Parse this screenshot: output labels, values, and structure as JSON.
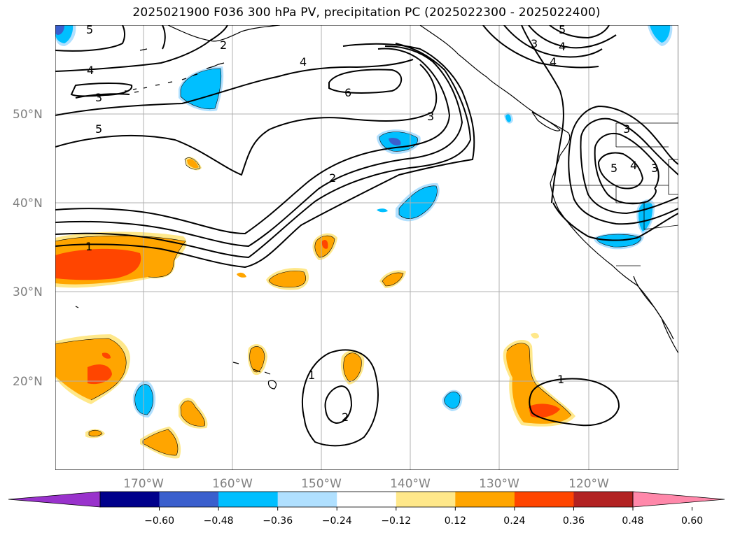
{
  "title": "2025021900 F036 300 hPa PV, precipitation PC (2025022300 - 2025022400)",
  "lat_labels": [
    "50°N",
    "40°N",
    "30°N",
    "20°N"
  ],
  "lon_labels": [
    "170°W",
    "160°W",
    "150°W",
    "140°W",
    "130°W",
    "120°W"
  ],
  "colorbar": {
    "ticks": [
      "−0.60",
      "−0.48",
      "−0.36",
      "−0.24",
      "−0.12",
      "0.12",
      "0.24",
      "0.36",
      "0.48",
      "0.60"
    ],
    "colors": [
      "#9932cc",
      "#00008b",
      "#3a5fcd",
      "#00bfff",
      "#b0e0ff",
      "#ffffff",
      "#ffe88a",
      "#ffa500",
      "#ff4500",
      "#b22222",
      "#ff88aa"
    ]
  },
  "contour_labels": [
    "5",
    "4",
    "3",
    "5",
    "2",
    "4",
    "6",
    "3",
    "2",
    "1",
    "3",
    "4",
    "5",
    "4",
    "3",
    "5",
    "4",
    "3",
    "1",
    "2",
    "1"
  ],
  "colors": {
    "positive_orange": "#ffa500",
    "positive_yellow": "#ffe88a",
    "positive_red": "#ff4500",
    "negative_light_blue": "#00bfff",
    "negative_blue": "#3a5fcd",
    "negative_pale": "#b0e0ff"
  }
}
